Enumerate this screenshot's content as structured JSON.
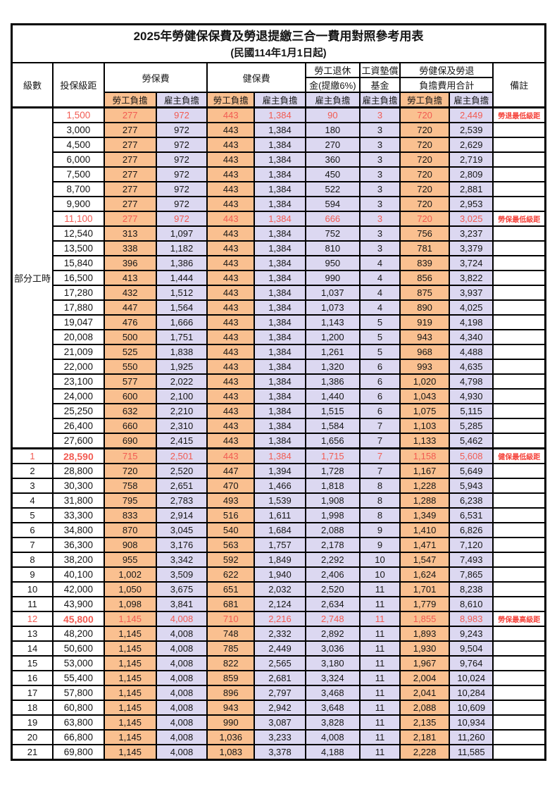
{
  "title": "2025年勞健保保費及勞退提繳三合一費用對照參考用表",
  "subtitle": "(民國114年1月1日起)",
  "colors": {
    "employee_column_bg": "#fac090",
    "employer_column_bg": "#dcd8f1",
    "highlight_value_red": "#f25b52",
    "remark_red": "#f5423a",
    "border_black": "#000000"
  },
  "header": {
    "level": "級數",
    "bracket": "投保級距",
    "labor_ins": "勞保費",
    "health_ins": "健保費",
    "pension_line1": "勞工退休",
    "pension_line2": "金(提繳6%)",
    "wage_fund_line1": "工資墊償",
    "wage_fund_line2": "基金",
    "total_line1": "勞健保及勞退",
    "total_line2": "負擔費用合計",
    "remark": "備註",
    "employee": "勞工負擔",
    "employer": "雇主負擔"
  },
  "part_time_label": "部分工時",
  "rows": [
    {
      "bracket": "1,500",
      "v": [
        "277",
        "972",
        "443",
        "1,384",
        "90",
        "3",
        "720",
        "2,449"
      ],
      "remark": "勞退最低級距",
      "hl": true
    },
    {
      "bracket": "3,000",
      "v": [
        "277",
        "972",
        "443",
        "1,384",
        "180",
        "3",
        "720",
        "2,539"
      ]
    },
    {
      "bracket": "4,500",
      "v": [
        "277",
        "972",
        "443",
        "1,384",
        "270",
        "3",
        "720",
        "2,629"
      ]
    },
    {
      "bracket": "6,000",
      "v": [
        "277",
        "972",
        "443",
        "1,384",
        "360",
        "3",
        "720",
        "2,719"
      ]
    },
    {
      "bracket": "7,500",
      "v": [
        "277",
        "972",
        "443",
        "1,384",
        "450",
        "3",
        "720",
        "2,809"
      ]
    },
    {
      "bracket": "8,700",
      "v": [
        "277",
        "972",
        "443",
        "1,384",
        "522",
        "3",
        "720",
        "2,881"
      ]
    },
    {
      "bracket": "9,900",
      "v": [
        "277",
        "972",
        "443",
        "1,384",
        "594",
        "3",
        "720",
        "2,953"
      ]
    },
    {
      "bracket": "11,100",
      "v": [
        "277",
        "972",
        "443",
        "1,384",
        "666",
        "3",
        "720",
        "3,025"
      ],
      "remark": "勞保最低級距",
      "hl": true
    },
    {
      "bracket": "12,540",
      "v": [
        "313",
        "1,097",
        "443",
        "1,384",
        "752",
        "3",
        "756",
        "3,237"
      ]
    },
    {
      "bracket": "13,500",
      "v": [
        "338",
        "1,182",
        "443",
        "1,384",
        "810",
        "3",
        "781",
        "3,379"
      ]
    },
    {
      "bracket": "15,840",
      "v": [
        "396",
        "1,386",
        "443",
        "1,384",
        "950",
        "4",
        "839",
        "3,724"
      ]
    },
    {
      "bracket": "16,500",
      "v": [
        "413",
        "1,444",
        "443",
        "1,384",
        "990",
        "4",
        "856",
        "3,822"
      ]
    },
    {
      "bracket": "17,280",
      "v": [
        "432",
        "1,512",
        "443",
        "1,384",
        "1,037",
        "4",
        "875",
        "3,937"
      ]
    },
    {
      "bracket": "17,880",
      "v": [
        "447",
        "1,564",
        "443",
        "1,384",
        "1,073",
        "4",
        "890",
        "4,025"
      ]
    },
    {
      "bracket": "19,047",
      "v": [
        "476",
        "1,666",
        "443",
        "1,384",
        "1,143",
        "5",
        "919",
        "4,198"
      ]
    },
    {
      "bracket": "20,008",
      "v": [
        "500",
        "1,751",
        "443",
        "1,384",
        "1,200",
        "5",
        "943",
        "4,340"
      ]
    },
    {
      "bracket": "21,009",
      "v": [
        "525",
        "1,838",
        "443",
        "1,384",
        "1,261",
        "5",
        "968",
        "4,488"
      ]
    },
    {
      "bracket": "22,000",
      "v": [
        "550",
        "1,925",
        "443",
        "1,384",
        "1,320",
        "6",
        "993",
        "4,635"
      ]
    },
    {
      "bracket": "23,100",
      "v": [
        "577",
        "2,022",
        "443",
        "1,384",
        "1,386",
        "6",
        "1,020",
        "4,798"
      ]
    },
    {
      "bracket": "24,000",
      "v": [
        "600",
        "2,100",
        "443",
        "1,384",
        "1,440",
        "6",
        "1,043",
        "4,930"
      ]
    },
    {
      "bracket": "25,250",
      "v": [
        "632",
        "2,210",
        "443",
        "1,384",
        "1,515",
        "6",
        "1,075",
        "5,115"
      ]
    },
    {
      "bracket": "26,400",
      "v": [
        "660",
        "2,310",
        "443",
        "1,384",
        "1,584",
        "7",
        "1,103",
        "5,285"
      ]
    },
    {
      "bracket": "27,600",
      "v": [
        "690",
        "2,415",
        "443",
        "1,384",
        "1,656",
        "7",
        "1,133",
        "5,462"
      ]
    },
    {
      "level": "1",
      "bracket": "28,590",
      "v": [
        "715",
        "2,501",
        "443",
        "1,384",
        "1,715",
        "7",
        "1,158",
        "5,608"
      ],
      "remark": "健保最低級距",
      "hl": true,
      "bold": true,
      "thick_top": true
    },
    {
      "level": "2",
      "bracket": "28,800",
      "v": [
        "720",
        "2,520",
        "447",
        "1,394",
        "1,728",
        "7",
        "1,167",
        "5,649"
      ]
    },
    {
      "level": "3",
      "bracket": "30,300",
      "v": [
        "758",
        "2,651",
        "470",
        "1,466",
        "1,818",
        "8",
        "1,228",
        "5,943"
      ]
    },
    {
      "level": "4",
      "bracket": "31,800",
      "v": [
        "795",
        "2,783",
        "493",
        "1,539",
        "1,908",
        "8",
        "1,288",
        "6,238"
      ]
    },
    {
      "level": "5",
      "bracket": "33,300",
      "v": [
        "833",
        "2,914",
        "516",
        "1,611",
        "1,998",
        "8",
        "1,349",
        "6,531"
      ]
    },
    {
      "level": "6",
      "bracket": "34,800",
      "v": [
        "870",
        "3,045",
        "540",
        "1,684",
        "2,088",
        "9",
        "1,410",
        "6,826"
      ]
    },
    {
      "level": "7",
      "bracket": "36,300",
      "v": [
        "908",
        "3,176",
        "563",
        "1,757",
        "2,178",
        "9",
        "1,471",
        "7,120"
      ]
    },
    {
      "level": "8",
      "bracket": "38,200",
      "v": [
        "955",
        "3,342",
        "592",
        "1,849",
        "2,292",
        "10",
        "1,547",
        "7,493"
      ]
    },
    {
      "level": "9",
      "bracket": "40,100",
      "v": [
        "1,002",
        "3,509",
        "622",
        "1,940",
        "2,406",
        "10",
        "1,624",
        "7,865"
      ]
    },
    {
      "level": "10",
      "bracket": "42,000",
      "v": [
        "1,050",
        "3,675",
        "651",
        "2,032",
        "2,520",
        "11",
        "1,701",
        "8,238"
      ]
    },
    {
      "level": "11",
      "bracket": "43,900",
      "v": [
        "1,098",
        "3,841",
        "681",
        "2,124",
        "2,634",
        "11",
        "1,779",
        "8,610"
      ]
    },
    {
      "level": "12",
      "bracket": "45,800",
      "v": [
        "1,145",
        "4,008",
        "710",
        "2,216",
        "2,748",
        "11",
        "1,855",
        "8,983"
      ],
      "remark": "勞保最高級距",
      "hl": true,
      "bold": true
    },
    {
      "level": "13",
      "bracket": "48,200",
      "v": [
        "1,145",
        "4,008",
        "748",
        "2,332",
        "2,892",
        "11",
        "1,893",
        "9,243"
      ]
    },
    {
      "level": "14",
      "bracket": "50,600",
      "v": [
        "1,145",
        "4,008",
        "785",
        "2,449",
        "3,036",
        "11",
        "1,930",
        "9,504"
      ]
    },
    {
      "level": "15",
      "bracket": "53,000",
      "v": [
        "1,145",
        "4,008",
        "822",
        "2,565",
        "3,180",
        "11",
        "1,967",
        "9,764"
      ]
    },
    {
      "level": "16",
      "bracket": "55,400",
      "v": [
        "1,145",
        "4,008",
        "859",
        "2,681",
        "3,324",
        "11",
        "2,004",
        "10,024"
      ]
    },
    {
      "level": "17",
      "bracket": "57,800",
      "v": [
        "1,145",
        "4,008",
        "896",
        "2,797",
        "3,468",
        "11",
        "2,041",
        "10,284"
      ]
    },
    {
      "level": "18",
      "bracket": "60,800",
      "v": [
        "1,145",
        "4,008",
        "943",
        "2,942",
        "3,648",
        "11",
        "2,088",
        "10,609"
      ]
    },
    {
      "level": "19",
      "bracket": "63,800",
      "v": [
        "1,145",
        "4,008",
        "990",
        "3,087",
        "3,828",
        "11",
        "2,135",
        "10,934"
      ]
    },
    {
      "level": "20",
      "bracket": "66,800",
      "v": [
        "1,145",
        "4,008",
        "1,036",
        "3,233",
        "4,008",
        "11",
        "2,181",
        "11,260"
      ]
    },
    {
      "level": "21",
      "bracket": "69,800",
      "v": [
        "1,145",
        "4,008",
        "1,083",
        "3,378",
        "4,188",
        "11",
        "2,228",
        "11,585"
      ]
    }
  ]
}
